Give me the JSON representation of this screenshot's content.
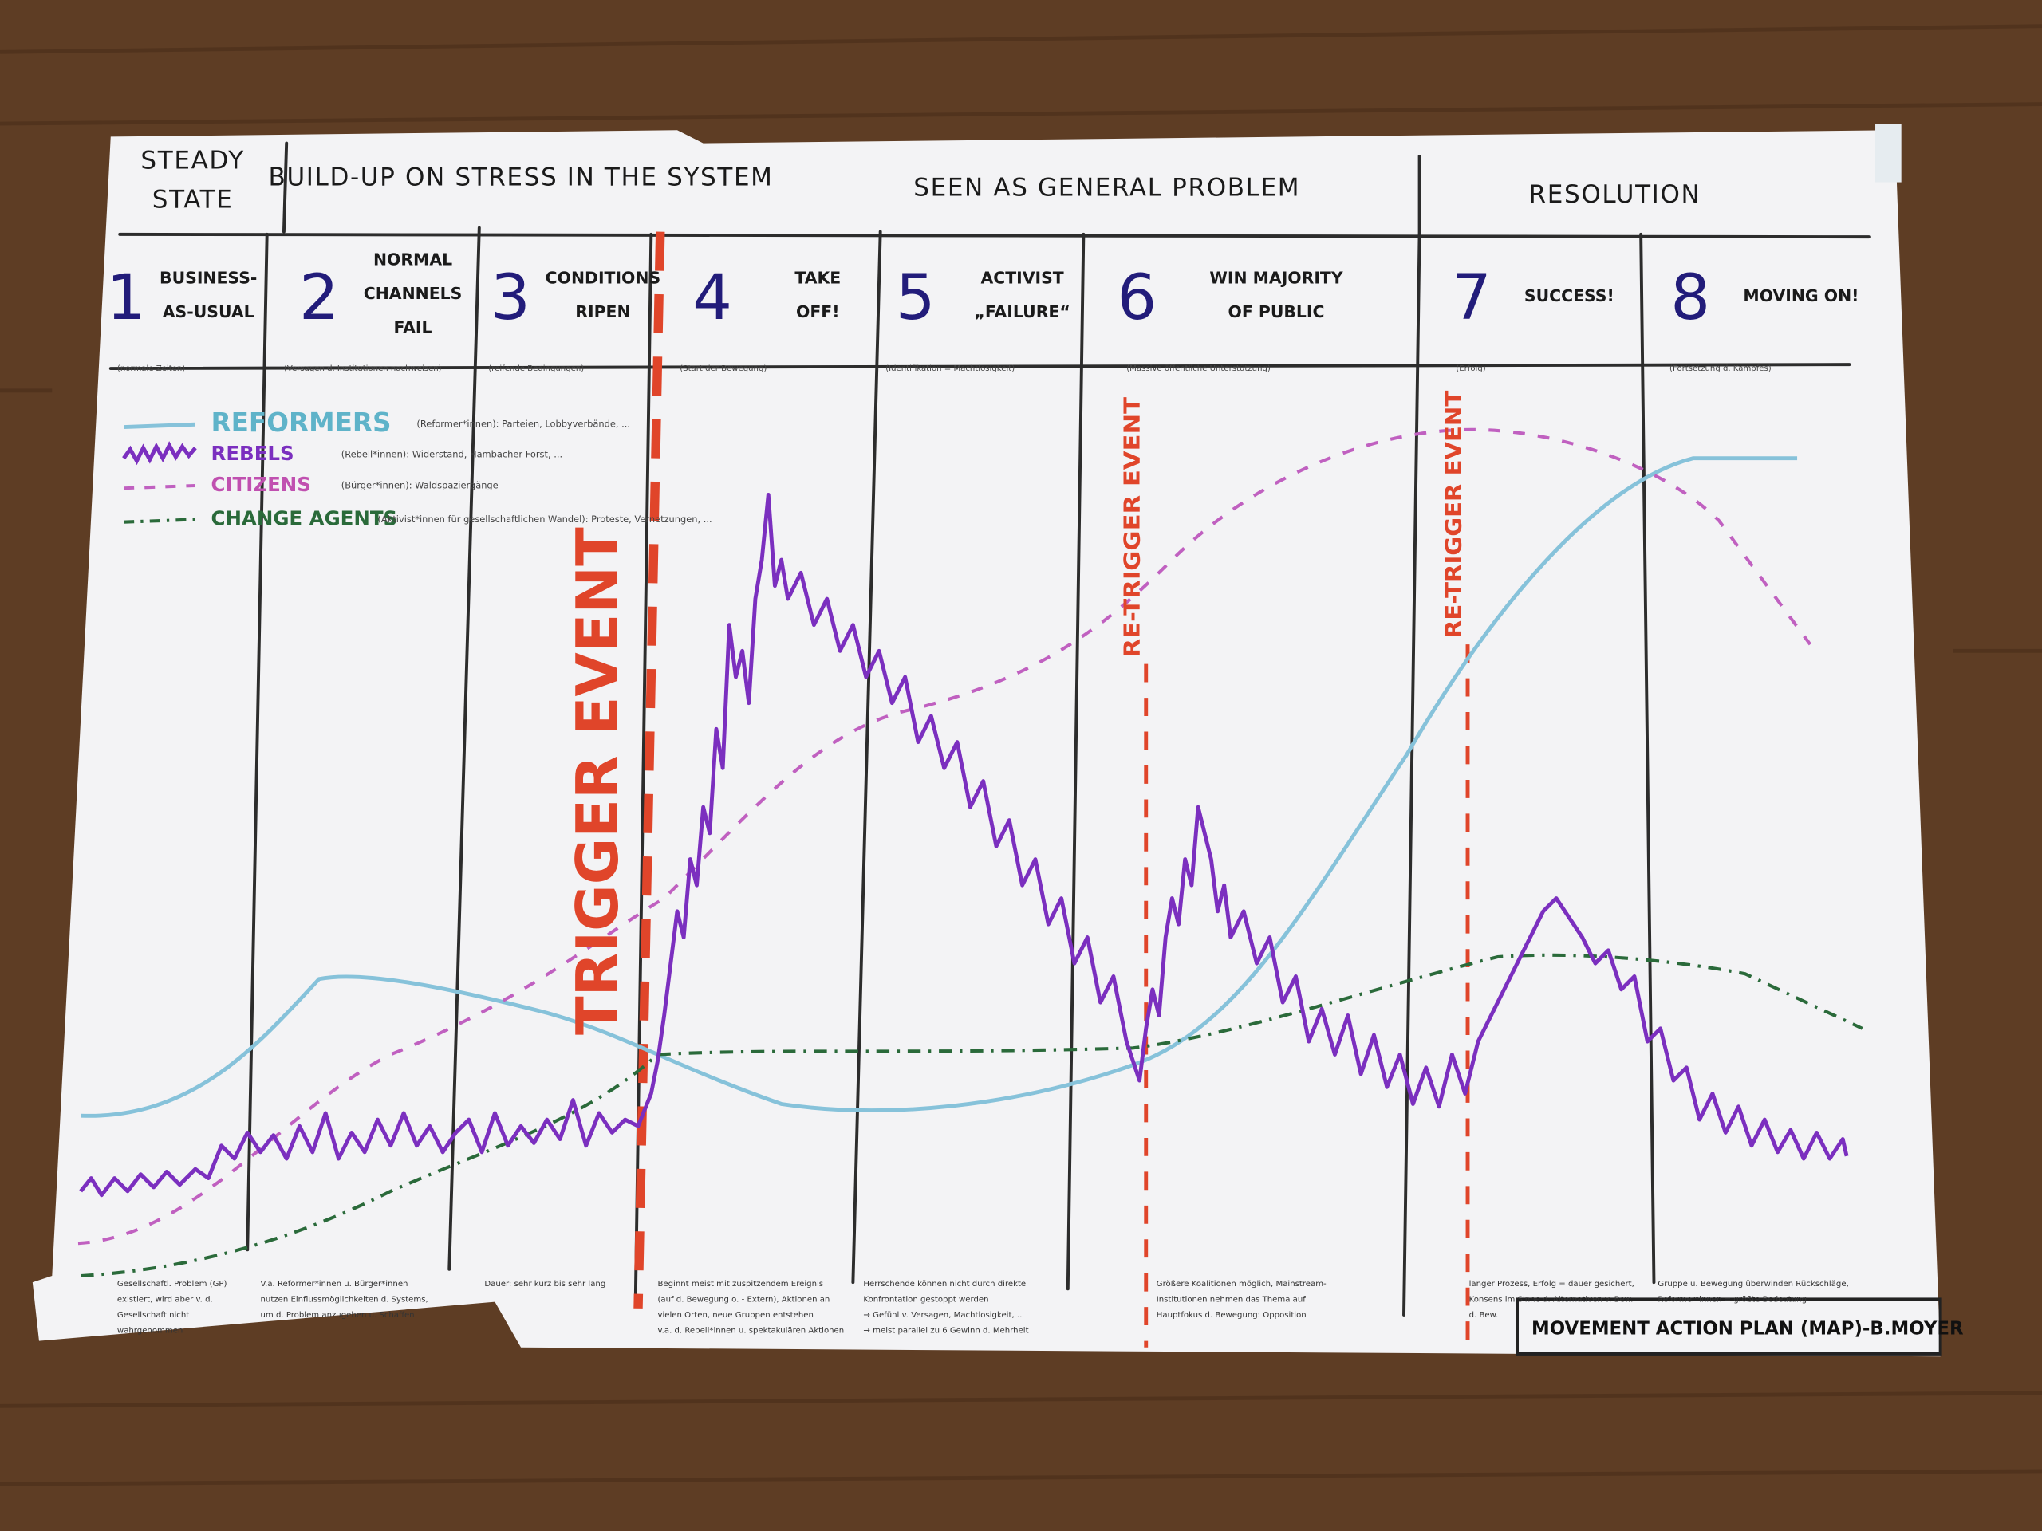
{
  "header": {
    "phases": [
      {
        "lines": [
          "STEADY",
          "STATE"
        ]
      },
      {
        "lines": [
          "BUILD-UP ON STRESS IN THE SYSTEM"
        ]
      },
      {
        "lines": [
          "SEEN AS GENERAL PROBLEM"
        ]
      },
      {
        "lines": [
          "RESOLUTION"
        ]
      }
    ]
  },
  "stages": [
    {
      "number": "1",
      "title": [
        "BUSINESS-",
        "AS-USUAL"
      ],
      "subtitle": "(normale Zeiten)",
      "note": [
        "Gesellschaftl. Problem (GP)",
        "existiert, wird aber v. d.",
        "Gesellschaft nicht",
        "wahrgenommen"
      ]
    },
    {
      "number": "2",
      "title": [
        "NORMAL",
        "CHANNELS",
        "FAIL"
      ],
      "subtitle": "(Versagen d. Institutionen nachweisen)",
      "note": [
        "V.a. Reformer*innen u. Bürger*innen",
        "nutzen Einflussmöglichkeiten d. Systems,",
        "um d. Problem anzugehen u. Schaffen"
      ]
    },
    {
      "number": "3",
      "title": [
        "CONDITIONS",
        "RIPEN"
      ],
      "subtitle": "(reifende Bedingungen)",
      "note": [
        "Dauer: sehr kurz bis sehr lang"
      ]
    },
    {
      "number": "4",
      "title": [
        "TAKE",
        "OFF!"
      ],
      "subtitle": "(Start der Bewegung)",
      "note": [
        "Beginnt meist mit zuspitzendem Ereignis",
        "(auf d. Bewegung o. - Extern), Aktionen an",
        "vielen Orten, neue Gruppen entstehen",
        "v.a. d. Rebell*innen u. spektakulären Aktionen"
      ]
    },
    {
      "number": "5",
      "title": [
        "ACTIVIST",
        "„FAILURE“"
      ],
      "subtitle": "(Identifikation = Machtlosigkeit)",
      "note": [
        "Herrschende können nicht durch direkte",
        "Konfrontation gestoppt werden",
        "→ Gefühl v. Versagen, Machtlosigkeit, ..",
        "→ meist parallel zu 6 Gewinn d. Mehrheit"
      ]
    },
    {
      "number": "6",
      "title": [
        "WIN MAJORITY",
        "OF PUBLIC"
      ],
      "subtitle": "(Massive öffentliche Unterstützung)",
      "note": [
        "Größere Koalitionen möglich, Mainstream-",
        "Institutionen nehmen das Thema auf",
        "Hauptfokus d. Bewegung: Opposition"
      ]
    },
    {
      "number": "7",
      "title": [
        "SUCCESS!"
      ],
      "subtitle": "(Erfolg)",
      "note": [
        "langer Prozess, Erfolg = dauer gesichert,",
        "Konsens im Sinne d. Alternativen v. Bew.",
        "d. Bew."
      ]
    },
    {
      "number": "8",
      "title": [
        "MOVING ON!"
      ],
      "subtitle": "(Fortsetzung d. Kampfes)",
      "note": [
        "Gruppe u. Bewegung überwinden Rückschläge,",
        "Reformer*innen = größte Bedeutung"
      ]
    }
  ],
  "legend": [
    {
      "name": "REFORMERS",
      "description": "(Reformer*innen): Parteien, Lobbyverbände, ..."
    },
    {
      "name": "REBELS",
      "description": "(Rebell*innen): Widerstand, Hambacher Forst, ..."
    },
    {
      "name": "CITIZENS",
      "description": "(Bürger*innen): Waldspaziergänge"
    },
    {
      "name": "CHANGE AGENTS",
      "description": "(Aktivist*innen für gesellschaftlichen Wandel): Proteste, Vernetzungen, ..."
    }
  ],
  "events": [
    "TRIGGER EVENT",
    "RE-TRIGGER EVENT",
    "RE-TRIGGER EVENT"
  ],
  "signature": "MOVEMENT ACTION PLAN (MAP)-B.MOYER"
}
